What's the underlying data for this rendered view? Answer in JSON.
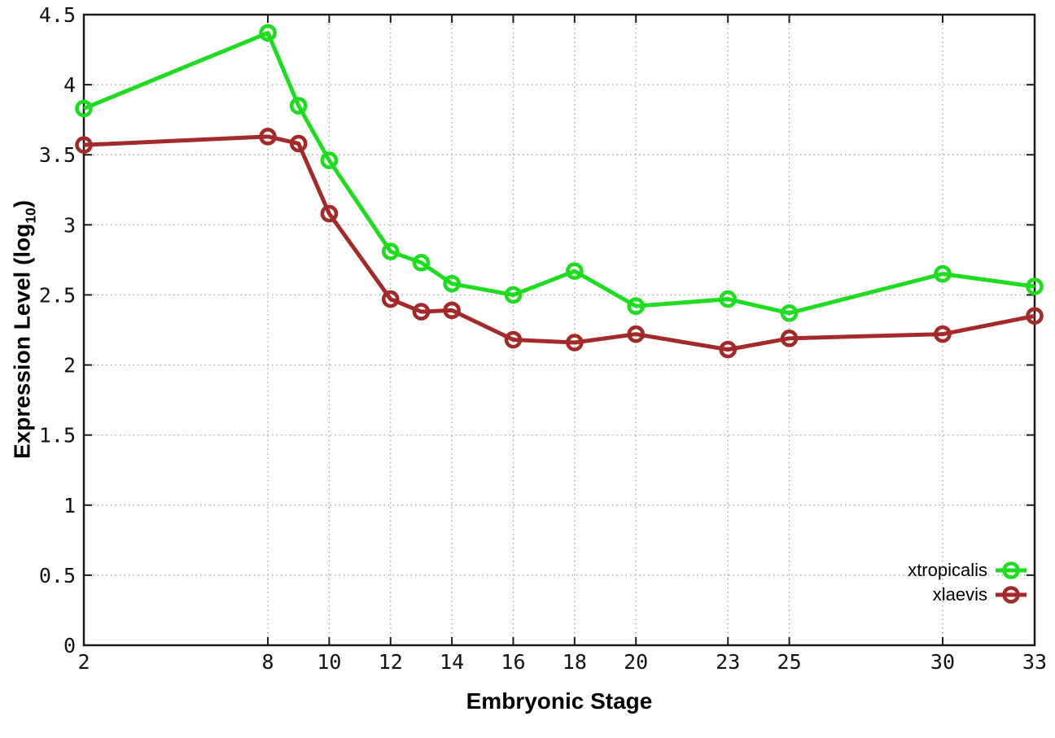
{
  "chart_data": {
    "type": "line",
    "title": "",
    "xlabel": "Embryonic Stage",
    "ylabel_main": "Expression Level (log",
    "ylabel_sub": "10",
    "ylabel_close": ")",
    "x": [
      2,
      8,
      9,
      10,
      12,
      13,
      14,
      16,
      18,
      20,
      23,
      25,
      30,
      33
    ],
    "series": [
      {
        "name": "xtropicalis",
        "color": "#1edc1e",
        "values": [
          3.83,
          4.37,
          3.85,
          3.46,
          2.81,
          2.73,
          2.58,
          2.5,
          2.67,
          2.42,
          2.47,
          2.37,
          2.65,
          2.56
        ]
      },
      {
        "name": "xlaevis",
        "color": "#a42a2a",
        "values": [
          3.57,
          3.63,
          3.58,
          3.08,
          2.47,
          2.38,
          2.39,
          2.18,
          2.16,
          2.22,
          2.11,
          2.19,
          2.22,
          2.35
        ]
      }
    ],
    "xlim": [
      2,
      33
    ],
    "ylim": [
      0,
      4.5
    ],
    "xticks": [
      2,
      8,
      10,
      12,
      14,
      16,
      18,
      20,
      23,
      25,
      30,
      33
    ],
    "xtick_labels": [
      "2",
      "8",
      "10",
      "12",
      "14",
      "16",
      "18",
      "20",
      "23",
      "25",
      "30",
      "33"
    ],
    "yticks": [
      0,
      0.5,
      1,
      1.5,
      2,
      2.5,
      3,
      3.5,
      4,
      4.5
    ],
    "ytick_labels": [
      "0",
      "0.5",
      "1",
      "1.5",
      "2",
      "2.5",
      "3",
      "3.5",
      "4",
      "4.5"
    ],
    "grid": true,
    "legend_position": "bottom-right-inside",
    "axis_color": "#1a1a1a",
    "grid_color": "#9a9a9a",
    "background": "#ffffff"
  }
}
